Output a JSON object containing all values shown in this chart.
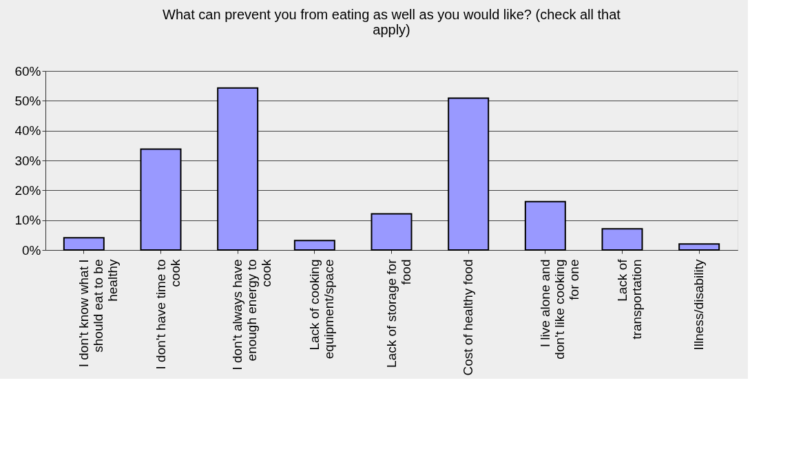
{
  "chart_data": {
    "type": "bar",
    "title": "What can prevent you from eating as well as you would like? (check all that apply)",
    "categories": [
      "I don't know what I should eat to be healthy",
      "I don't have time to cook",
      "I don't always have enough energy to cook",
      "Lack of cooking equipment/space",
      "Lack of storage for food",
      "Cost of healthy food",
      "I live alone and don't like cooking for one",
      "Lack of transportation",
      "Illness/disability"
    ],
    "values": [
      4.1,
      33.8,
      54.3,
      3.2,
      12.1,
      50.9,
      16.2,
      7.1,
      2.0
    ],
    "color": "#9999ff",
    "ylim": [
      0,
      60
    ],
    "yticks": [
      {
        "value": 0,
        "label": "0%"
      },
      {
        "value": 10,
        "label": "10%"
      },
      {
        "value": 20,
        "label": "20%"
      },
      {
        "value": 30,
        "label": "30%"
      },
      {
        "value": 40,
        "label": "40%"
      },
      {
        "value": 50,
        "label": "50%"
      },
      {
        "value": 60,
        "label": "60%"
      }
    ],
    "grid": "y"
  }
}
